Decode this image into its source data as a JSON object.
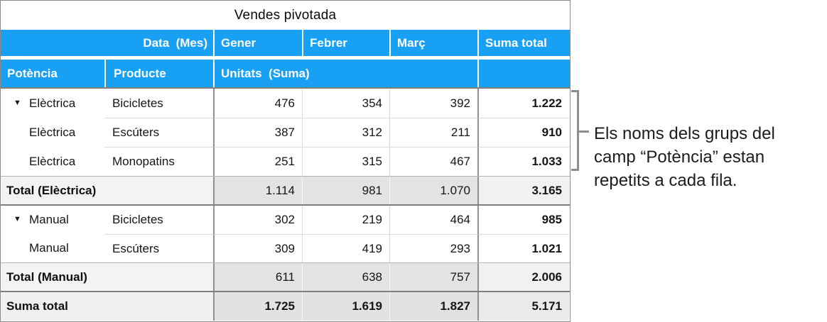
{
  "title": "Vendes pivotada",
  "header": {
    "data_mes": "Data  (Mes)",
    "months": [
      "Gener",
      "Febrer",
      "Març"
    ],
    "suma_total": "Suma total",
    "potencia": "Potència",
    "producte": "Producte",
    "unitats": "Unitats  (Suma)"
  },
  "icons": {
    "disclosure": "▼"
  },
  "rows": [
    {
      "power": "Elèctrica",
      "product": "Bicicletes",
      "gener": "476",
      "febrer": "354",
      "marc": "392",
      "total": "1.222"
    },
    {
      "power": "Elèctrica",
      "product": "Escúters",
      "gener": "387",
      "febrer": "312",
      "marc": "211",
      "total": "910"
    },
    {
      "power": "Elèctrica",
      "product": "Monopatins",
      "gener": "251",
      "febrer": "315",
      "marc": "467",
      "total": "1.033"
    },
    {
      "power": "Manual",
      "product": "Bicicletes",
      "gener": "302",
      "febrer": "219",
      "marc": "464",
      "total": "985"
    },
    {
      "power": "Manual",
      "product": "Escúters",
      "gener": "309",
      "febrer": "419",
      "marc": "293",
      "total": "1.021"
    }
  ],
  "totals": {
    "electrica": {
      "label": "Total (Elèctrica)",
      "gener": "1.114",
      "febrer": "981",
      "marc": "1.070",
      "total": "3.165"
    },
    "manual": {
      "label": "Total (Manual)",
      "gener": "611",
      "febrer": "638",
      "marc": "757",
      "total": "2.006"
    },
    "grand": {
      "label": "Suma total",
      "gener": "1.725",
      "febrer": "1.619",
      "marc": "1.827",
      "total": "5.171"
    }
  },
  "annotation": {
    "lines": [
      "Els noms dels grups del",
      "camp “Potència” estan",
      "repetits a cada fila."
    ]
  },
  "colors": {
    "header_blue": "#18a0f5"
  }
}
